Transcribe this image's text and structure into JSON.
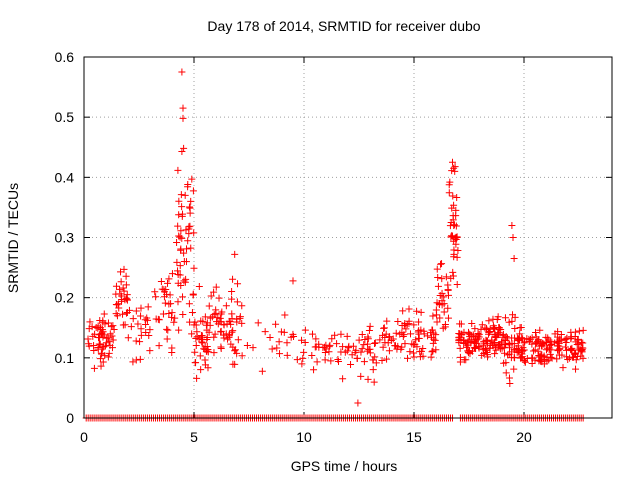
{
  "chart_data": {
    "type": "scatter",
    "title": "Day 178 of 2014, SRMTID for receiver dubo",
    "xlabel": "GPS time / hours",
    "ylabel": "SRMTID / TECUs",
    "xlim": [
      0,
      24
    ],
    "ylim": [
      0,
      0.6
    ],
    "x_ticks": [
      0,
      5,
      10,
      15,
      20
    ],
    "y_ticks": [
      0,
      0.1,
      0.2,
      0.3,
      0.4,
      0.5,
      0.6
    ],
    "x_tick_labels": [
      "0",
      "5",
      "10",
      "15",
      "20"
    ],
    "y_tick_labels": [
      "0",
      "0.1",
      "0.2",
      "0.3",
      "0.4",
      "0.5",
      "0.6"
    ],
    "marker": "plus",
    "color": "#ff0000",
    "grid": true,
    "clusters": [
      {
        "x_range": [
          0.1,
          1.4
        ],
        "center": 0.13,
        "spread": 0.04,
        "count": 60
      },
      {
        "x_range": [
          1.4,
          2.0
        ],
        "center": 0.2,
        "spread": 0.05,
        "count": 30
      },
      {
        "x_range": [
          2.0,
          3.5
        ],
        "center": 0.15,
        "spread": 0.05,
        "count": 30
      },
      {
        "x_range": [
          3.5,
          4.2
        ],
        "center": 0.18,
        "spread": 0.06,
        "count": 25
      },
      {
        "x_range": [
          4.2,
          5.0
        ],
        "center": 0.28,
        "spread": 0.12,
        "count": 55
      },
      {
        "x_range": [
          5.0,
          5.8
        ],
        "center": 0.13,
        "spread": 0.06,
        "count": 45
      },
      {
        "x_range": [
          5.8,
          7.2
        ],
        "center": 0.15,
        "spread": 0.06,
        "count": 60
      },
      {
        "x_range": [
          7.2,
          9.5
        ],
        "center": 0.13,
        "spread": 0.04,
        "count": 18
      },
      {
        "x_range": [
          9.5,
          11.5
        ],
        "center": 0.12,
        "spread": 0.03,
        "count": 30
      },
      {
        "x_range": [
          11.5,
          13.5
        ],
        "center": 0.11,
        "spread": 0.04,
        "count": 45
      },
      {
        "x_range": [
          13.5,
          15.0
        ],
        "center": 0.14,
        "spread": 0.04,
        "count": 45
      },
      {
        "x_range": [
          15.0,
          16.0
        ],
        "center": 0.13,
        "spread": 0.04,
        "count": 35
      },
      {
        "x_range": [
          16.0,
          16.6
        ],
        "center": 0.2,
        "spread": 0.06,
        "count": 30
      },
      {
        "x_range": [
          16.6,
          17.0
        ],
        "center": 0.32,
        "spread": 0.09,
        "count": 35
      },
      {
        "x_range": [
          17.0,
          19.0
        ],
        "center": 0.13,
        "spread": 0.03,
        "count": 130
      },
      {
        "x_range": [
          19.0,
          19.6
        ],
        "center": 0.12,
        "spread": 0.05,
        "count": 40
      },
      {
        "x_range": [
          19.6,
          22.7
        ],
        "center": 0.12,
        "spread": 0.03,
        "count": 160
      }
    ],
    "peaks": [
      {
        "x": 4.45,
        "y": 0.575
      },
      {
        "x": 4.5,
        "y": 0.515
      },
      {
        "x": 4.5,
        "y": 0.498
      },
      {
        "x": 4.45,
        "y": 0.443
      },
      {
        "x": 4.9,
        "y": 0.397
      },
      {
        "x": 4.6,
        "y": 0.37
      },
      {
        "x": 4.85,
        "y": 0.36
      },
      {
        "x": 16.75,
        "y": 0.425
      },
      {
        "x": 16.8,
        "y": 0.415
      },
      {
        "x": 16.85,
        "y": 0.41
      },
      {
        "x": 16.9,
        "y": 0.345
      },
      {
        "x": 16.95,
        "y": 0.3
      },
      {
        "x": 19.45,
        "y": 0.32
      },
      {
        "x": 19.5,
        "y": 0.3
      },
      {
        "x": 19.55,
        "y": 0.265
      },
      {
        "x": 12.45,
        "y": 0.025
      },
      {
        "x": 9.5,
        "y": 0.228
      },
      {
        "x": 6.85,
        "y": 0.272
      }
    ],
    "zero_baseline": {
      "x_range": [
        0.1,
        22.7
      ],
      "y": 0,
      "gap_range": [
        16.8,
        17.1
      ]
    }
  }
}
